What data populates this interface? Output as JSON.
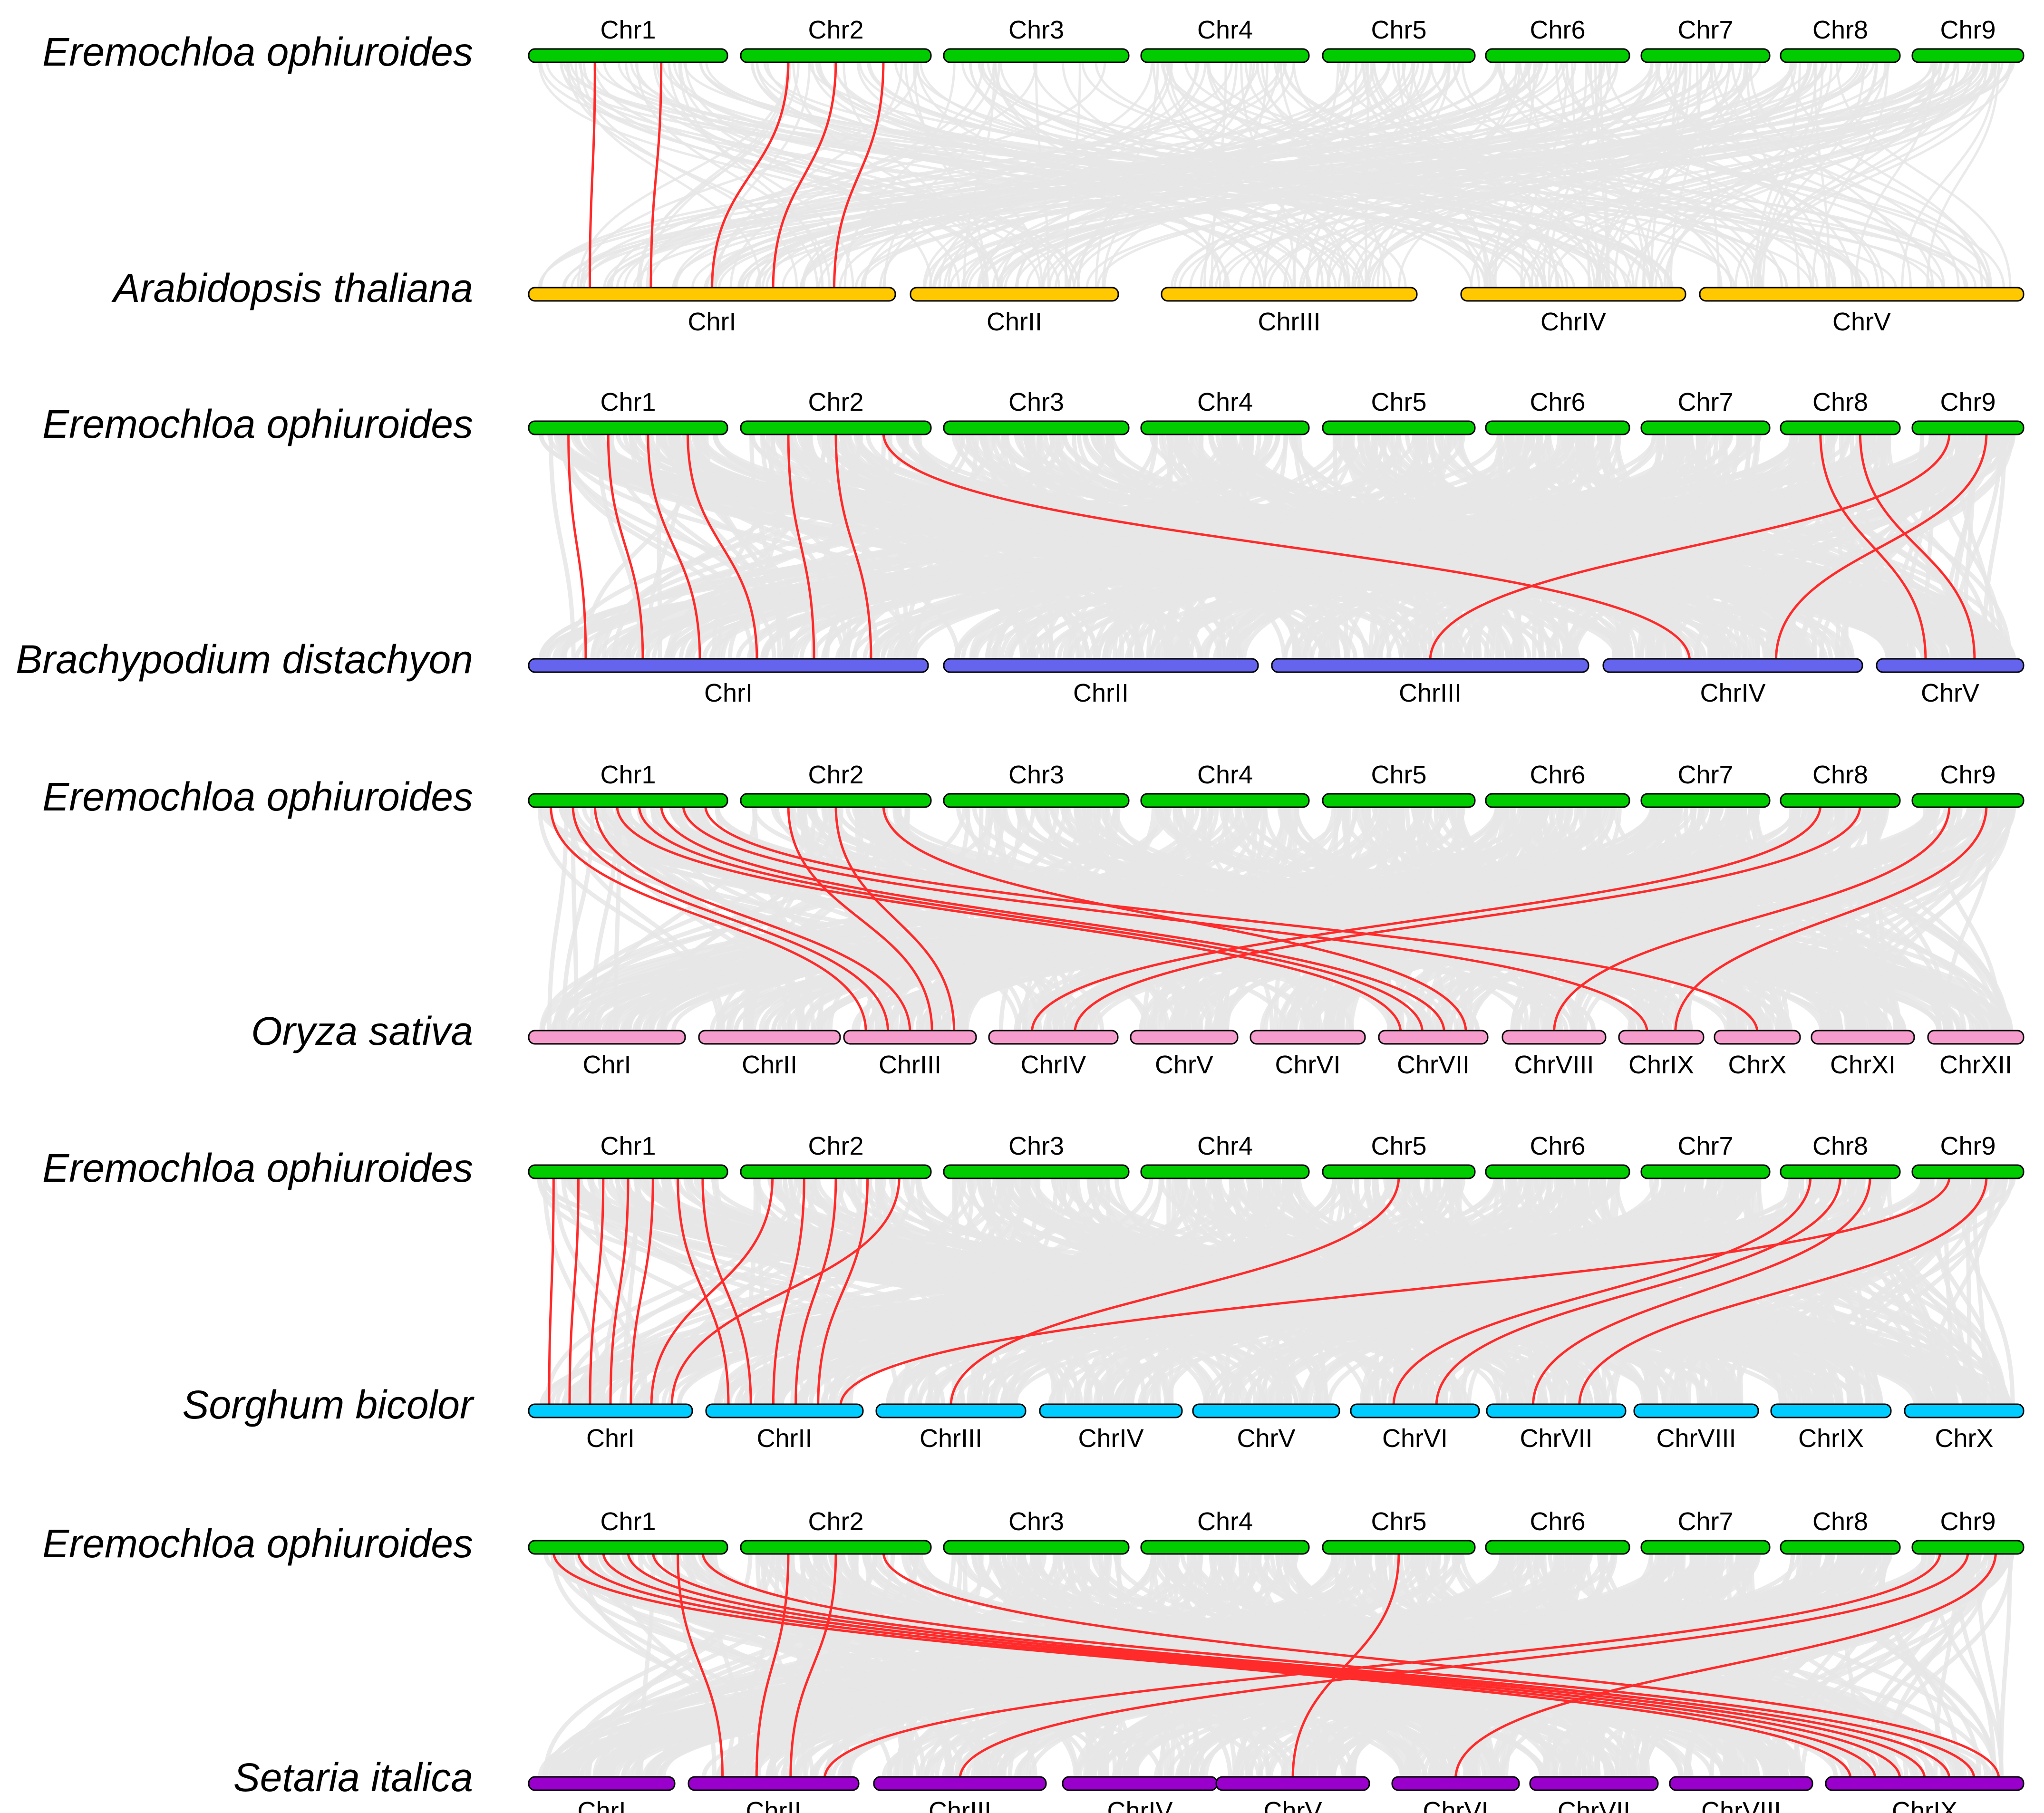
{
  "colors": {
    "background_link": "#e6e6e6",
    "highlight_link": "#ff2a2a",
    "reference_bar": "#00cc00"
  },
  "panels": [
    {
      "reference": {
        "species": "Eremochloa ophiuroides",
        "color": "#00cc00",
        "chromosomes": [
          "Chr1",
          "Chr2",
          "Chr3",
          "Chr4",
          "Chr5",
          "Chr6",
          "Chr7",
          "Chr8",
          "Chr9"
        ]
      },
      "target": {
        "species": "Arabidopsis thaliana",
        "color": "#ffc800",
        "chromosomes": [
          "ChrI",
          "ChrII",
          "ChrIII",
          "ChrIV",
          "ChrV"
        ]
      },
      "highlighted_links": [
        {
          "from": "Chr1",
          "to": "ChrI"
        },
        {
          "from": "Chr1",
          "to": "ChrI"
        },
        {
          "from": "Chr2",
          "to": "ChrI"
        },
        {
          "from": "Chr2",
          "to": "ChrI"
        },
        {
          "from": "Chr2",
          "to": "ChrI"
        }
      ]
    },
    {
      "reference": {
        "species": "Eremochloa ophiuroides",
        "color": "#00cc00",
        "chromosomes": [
          "Chr1",
          "Chr2",
          "Chr3",
          "Chr4",
          "Chr5",
          "Chr6",
          "Chr7",
          "Chr8",
          "Chr9"
        ]
      },
      "target": {
        "species": "Brachypodium distachyon",
        "color": "#6464ee",
        "chromosomes": [
          "ChrI",
          "ChrII",
          "ChrIII",
          "ChrIV",
          "ChrV"
        ]
      },
      "highlighted_links": [
        {
          "from": "Chr1",
          "to": "ChrI"
        },
        {
          "from": "Chr1",
          "to": "ChrI"
        },
        {
          "from": "Chr1",
          "to": "ChrI"
        },
        {
          "from": "Chr1",
          "to": "ChrI"
        },
        {
          "from": "Chr2",
          "to": "ChrI"
        },
        {
          "from": "Chr2",
          "to": "ChrI"
        },
        {
          "from": "Chr2",
          "to": "ChrIV"
        },
        {
          "from": "Chr8",
          "to": "ChrV"
        },
        {
          "from": "Chr8",
          "to": "ChrV"
        },
        {
          "from": "Chr9",
          "to": "ChrIII"
        },
        {
          "from": "Chr9",
          "to": "ChrIV"
        }
      ]
    },
    {
      "reference": {
        "species": "Eremochloa ophiuroides",
        "color": "#00cc00",
        "chromosomes": [
          "Chr1",
          "Chr2",
          "Chr3",
          "Chr4",
          "Chr5",
          "Chr6",
          "Chr7",
          "Chr8",
          "Chr9"
        ]
      },
      "target": {
        "species": "Oryza sativa",
        "color": "#f59ccc",
        "chromosomes": [
          "ChrI",
          "ChrII",
          "ChrIII",
          "ChrIV",
          "ChrV",
          "ChrVI",
          "ChrVII",
          "ChrVIII",
          "ChrIX",
          "ChrX",
          "ChrXI",
          "ChrXII"
        ]
      },
      "highlighted_links": [
        {
          "from": "Chr1",
          "to": "ChrIII"
        },
        {
          "from": "Chr1",
          "to": "ChrIII"
        },
        {
          "from": "Chr1",
          "to": "ChrIII"
        },
        {
          "from": "Chr1",
          "to": "ChrVII"
        },
        {
          "from": "Chr1",
          "to": "ChrVII"
        },
        {
          "from": "Chr1",
          "to": "ChrVII"
        },
        {
          "from": "Chr1",
          "to": "ChrIX"
        },
        {
          "from": "Chr1",
          "to": "ChrX"
        },
        {
          "from": "Chr2",
          "to": "ChrIII"
        },
        {
          "from": "Chr2",
          "to": "ChrIII"
        },
        {
          "from": "Chr2",
          "to": "ChrVII"
        },
        {
          "from": "Chr8",
          "to": "ChrIV"
        },
        {
          "from": "Chr8",
          "to": "ChrIV"
        },
        {
          "from": "Chr9",
          "to": "ChrVIII"
        },
        {
          "from": "Chr9",
          "to": "ChrIX"
        }
      ]
    },
    {
      "reference": {
        "species": "Eremochloa ophiuroides",
        "color": "#00cc00",
        "chromosomes": [
          "Chr1",
          "Chr2",
          "Chr3",
          "Chr4",
          "Chr5",
          "Chr6",
          "Chr7",
          "Chr8",
          "Chr9"
        ]
      },
      "target": {
        "species": "Sorghum bicolor",
        "color": "#00ccff",
        "chromosomes": [
          "ChrI",
          "ChrII",
          "ChrIII",
          "ChrIV",
          "ChrV",
          "ChrVI",
          "ChrVII",
          "ChrVIII",
          "ChrIX",
          "ChrX"
        ]
      },
      "highlighted_links": [
        {
          "from": "Chr1",
          "to": "ChrI"
        },
        {
          "from": "Chr1",
          "to": "ChrI"
        },
        {
          "from": "Chr1",
          "to": "ChrI"
        },
        {
          "from": "Chr1",
          "to": "ChrI"
        },
        {
          "from": "Chr1",
          "to": "ChrI"
        },
        {
          "from": "Chr1",
          "to": "ChrII"
        },
        {
          "from": "Chr1",
          "to": "ChrII"
        },
        {
          "from": "Chr2",
          "to": "ChrI"
        },
        {
          "from": "Chr2",
          "to": "ChrII"
        },
        {
          "from": "Chr2",
          "to": "ChrII"
        },
        {
          "from": "Chr2",
          "to": "ChrII"
        },
        {
          "from": "Chr2",
          "to": "ChrI"
        },
        {
          "from": "Chr5",
          "to": "ChrIII"
        },
        {
          "from": "Chr8",
          "to": "ChrVI"
        },
        {
          "from": "Chr8",
          "to": "ChrVI"
        },
        {
          "from": "Chr8",
          "to": "ChrVII"
        },
        {
          "from": "Chr9",
          "to": "ChrII"
        },
        {
          "from": "Chr9",
          "to": "ChrVII"
        }
      ]
    },
    {
      "reference": {
        "species": "Eremochloa ophiuroides",
        "color": "#00cc00",
        "chromosomes": [
          "Chr1",
          "Chr2",
          "Chr3",
          "Chr4",
          "Chr5",
          "Chr6",
          "Chr7",
          "Chr8",
          "Chr9"
        ]
      },
      "target": {
        "species": "Setaria italica",
        "color": "#9900cc",
        "chromosomes": [
          "ChrI",
          "ChrII",
          "ChrIII",
          "ChrIV",
          "ChrV",
          "ChrVI",
          "ChrVII",
          "ChrVIII",
          "ChrIX"
        ]
      },
      "highlighted_links": [
        {
          "from": "Chr1",
          "to": "ChrIX"
        },
        {
          "from": "Chr1",
          "to": "ChrIX"
        },
        {
          "from": "Chr1",
          "to": "ChrIX"
        },
        {
          "from": "Chr1",
          "to": "ChrIX"
        },
        {
          "from": "Chr1",
          "to": "ChrIX"
        },
        {
          "from": "Chr1",
          "to": "ChrII"
        },
        {
          "from": "Chr1",
          "to": "ChrIX"
        },
        {
          "from": "Chr2",
          "to": "ChrII"
        },
        {
          "from": "Chr2",
          "to": "ChrII"
        },
        {
          "from": "Chr2",
          "to": "ChrIX"
        },
        {
          "from": "Chr5",
          "to": "ChrV"
        },
        {
          "from": "Chr9",
          "to": "ChrII"
        },
        {
          "from": "Chr9",
          "to": "ChrIII"
        },
        {
          "from": "Chr9",
          "to": "ChrVI"
        }
      ]
    }
  ]
}
